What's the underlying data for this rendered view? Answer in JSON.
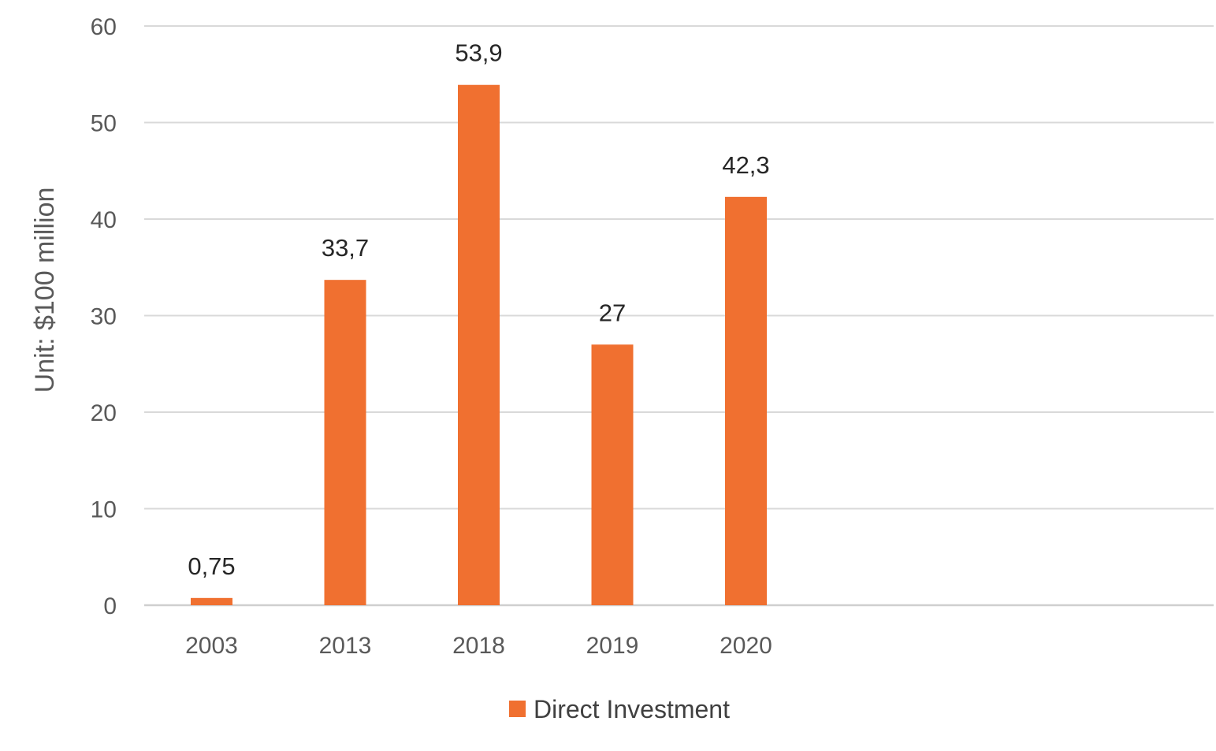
{
  "chart_data": {
    "type": "bar",
    "title": "",
    "xlabel": "",
    "ylabel": "Unit: $100 million",
    "categories": [
      "2003",
      "2013",
      "2018",
      "2019",
      "2020"
    ],
    "series": [
      {
        "name": "Direct Investment",
        "values": [
          0.75,
          33.7,
          53.9,
          27,
          42.3
        ],
        "labels": [
          "0,75",
          "33,7",
          "53,9",
          "27",
          "42,3"
        ]
      }
    ],
    "ylim": [
      0,
      60
    ],
    "yticks": [
      0,
      10,
      20,
      30,
      40,
      50,
      60
    ],
    "grid": true,
    "legend_position": "bottom-center",
    "bar_color": "#f07030"
  }
}
